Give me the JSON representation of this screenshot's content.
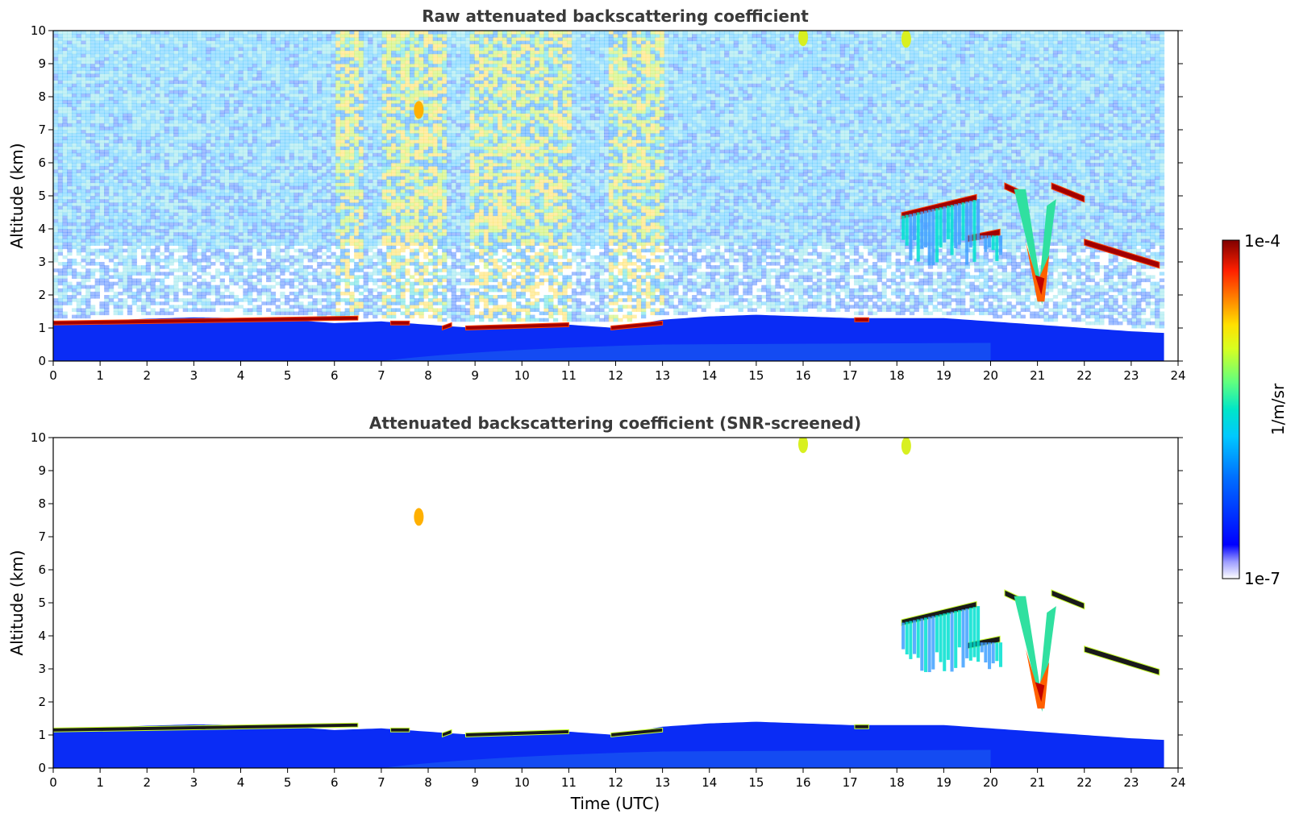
{
  "chart_data": [
    {
      "type": "heatmap",
      "title": "Raw attenuated backscattering coefficient",
      "xlabel": "",
      "ylabel": "Altitude (km)",
      "xlim": [
        0,
        24
      ],
      "ylim": [
        0,
        10
      ],
      "x_ticks": [
        "0",
        "1",
        "2",
        "3",
        "4",
        "5",
        "6",
        "7",
        "8",
        "9",
        "10",
        "11",
        "12",
        "13",
        "14",
        "15",
        "16",
        "17",
        "18",
        "19",
        "20",
        "21",
        "22",
        "23",
        "24"
      ],
      "y_ticks": [
        "0",
        "1",
        "2",
        "3",
        "4",
        "5",
        "6",
        "7",
        "8",
        "9",
        "10"
      ],
      "data_end_time": 23.7,
      "boundary_layer_top_km": [
        [
          0,
          1.15
        ],
        [
          1,
          1.22
        ],
        [
          2,
          1.28
        ],
        [
          3,
          1.32
        ],
        [
          4,
          1.3
        ],
        [
          5,
          1.25
        ],
        [
          6,
          1.15
        ],
        [
          7,
          1.2
        ],
        [
          8,
          1.1
        ],
        [
          9,
          1.0
        ],
        [
          10,
          1.05
        ],
        [
          11,
          1.1
        ],
        [
          12,
          1.0
        ],
        [
          13,
          1.25
        ],
        [
          14,
          1.35
        ],
        [
          15,
          1.4
        ],
        [
          16,
          1.35
        ],
        [
          17,
          1.3
        ],
        [
          18,
          1.3
        ],
        [
          19,
          1.3
        ],
        [
          20,
          1.2
        ],
        [
          21,
          1.1
        ],
        [
          22,
          1.0
        ],
        [
          23,
          0.9
        ],
        [
          23.7,
          0.85
        ]
      ],
      "cloud_layer_segments_km": [
        {
          "t0": 0.0,
          "t1": 6.5,
          "z0": 1.15,
          "z1": 1.3
        },
        {
          "t0": 7.2,
          "t1": 7.6,
          "z0": 1.15,
          "z1": 1.15
        },
        {
          "t0": 8.3,
          "t1": 8.5,
          "z0": 1.0,
          "z1": 1.1
        },
        {
          "t0": 8.8,
          "t1": 11.0,
          "z0": 1.0,
          "z1": 1.1
        },
        {
          "t0": 11.9,
          "t1": 13.0,
          "z0": 1.0,
          "z1": 1.15
        },
        {
          "t0": 17.1,
          "t1": 17.4,
          "z0": 1.25,
          "z1": 1.25
        },
        {
          "t0": 18.1,
          "t1": 19.7,
          "z0": 4.4,
          "z1": 4.95
        },
        {
          "t0": 19.5,
          "t1": 20.2,
          "z0": 3.7,
          "z1": 3.9
        },
        {
          "t0": 20.3,
          "t1": 20.6,
          "z0": 5.3,
          "z1": 5.1
        },
        {
          "t0": 21.3,
          "t1": 22.0,
          "z0": 5.3,
          "z1": 4.9
        },
        {
          "t0": 22.0,
          "t1": 23.6,
          "z0": 3.6,
          "z1": 2.9
        }
      ],
      "precipitation_shaft": {
        "t_start": 20.5,
        "t_end": 21.4,
        "z_top": 5.2,
        "z_bottom": 1.7
      },
      "high_cloud_patches": [
        {
          "t": 7.8,
          "z": 7.6
        },
        {
          "t": 16.0,
          "z": 9.8
        },
        {
          "t": 18.2,
          "z": 9.75
        }
      ],
      "sunlit_noise_periods": [
        [
          6.0,
          6.6
        ],
        [
          7.0,
          8.3
        ],
        [
          8.8,
          11.0
        ],
        [
          11.8,
          13.0
        ]
      ]
    },
    {
      "type": "heatmap",
      "title": "Attenuated backscattering coefficient (SNR-screened)",
      "xlabel": "Time (UTC)",
      "ylabel": "Altitude (km)",
      "xlim": [
        0,
        24
      ],
      "ylim": [
        0,
        10
      ],
      "x_ticks": [
        "0",
        "1",
        "2",
        "3",
        "4",
        "5",
        "6",
        "7",
        "8",
        "9",
        "10",
        "11",
        "12",
        "13",
        "14",
        "15",
        "16",
        "17",
        "18",
        "19",
        "20",
        "21",
        "22",
        "23",
        "24"
      ],
      "y_ticks": [
        "0",
        "1",
        "2",
        "3",
        "4",
        "5",
        "6",
        "7",
        "8",
        "9",
        "10"
      ],
      "data_end_time": 23.7
    }
  ],
  "colorbar": {
    "label": "1/m/sr",
    "max_label": "1e-4",
    "min_label": "1e-7",
    "colormap": [
      "#0a0a8a",
      "#0000ff",
      "#0050ff",
      "#00a0ff",
      "#00e0e0",
      "#50ff90",
      "#c8ff30",
      "#ffe000",
      "#ff8000",
      "#ff2000",
      "#a00000",
      "#6a0000"
    ],
    "low_end_colors": [
      "#e8e8ff",
      "#c0c0ff",
      "#9090ff",
      "#6060ff"
    ]
  }
}
